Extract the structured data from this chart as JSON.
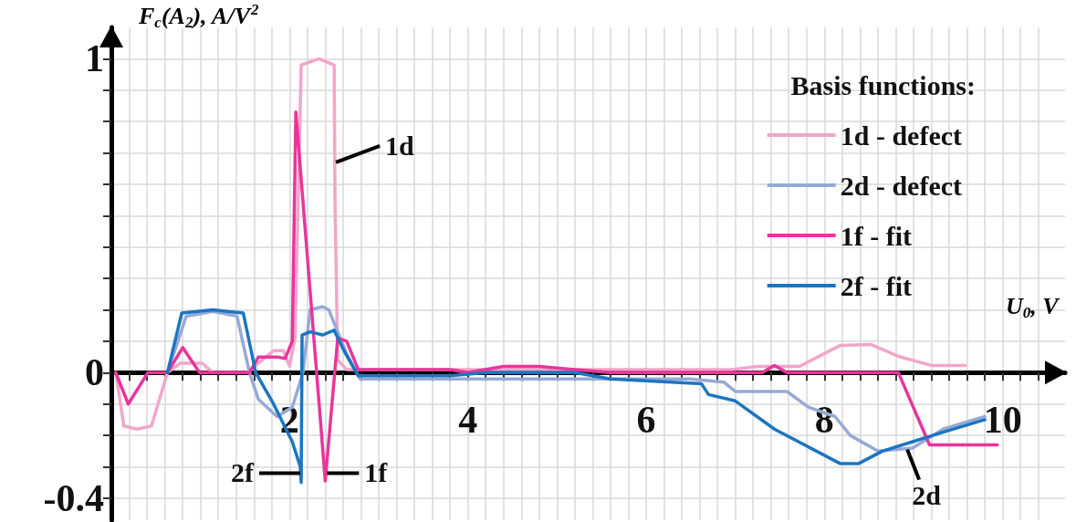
{
  "chart_data": {
    "type": "line",
    "xlabel": "U$_{0}$, V",
    "ylabel": "F$_{c}$(A$_{2}$), A/V$^{2}$",
    "legend_title": "Basis functions:",
    "legend": "top right",
    "grid": true,
    "xlim": [
      0,
      10.7
    ],
    "ylim": [
      -0.47,
      1.1
    ],
    "xticks": [
      {
        "value": 0.2,
        "label": null
      },
      {
        "value": 0.4,
        "label": null
      },
      {
        "value": 0.6,
        "label": null
      },
      {
        "value": 0.8,
        "label": null
      },
      {
        "value": 1,
        "label": null
      },
      {
        "value": 1.2,
        "label": null
      },
      {
        "value": 1.4,
        "label": null
      },
      {
        "value": 1.6,
        "label": null
      },
      {
        "value": 1.8,
        "label": null
      },
      2,
      {
        "value": 2.2,
        "label": null
      },
      {
        "value": 2.4,
        "label": null
      },
      {
        "value": 2.6,
        "label": null
      },
      {
        "value": 2.8,
        "label": null
      },
      {
        "value": 3,
        "label": null
      },
      {
        "value": 3.2,
        "label": null
      },
      {
        "value": 3.4,
        "label": null
      },
      {
        "value": 3.6,
        "label": null
      },
      {
        "value": 3.8,
        "label": null
      },
      4,
      {
        "value": 4.2,
        "label": null
      },
      {
        "value": 4.4,
        "label": null
      },
      {
        "value": 4.6,
        "label": null
      },
      {
        "value": 4.8,
        "label": null
      },
      {
        "value": 5,
        "label": null
      },
      {
        "value": 5.2,
        "label": null
      },
      {
        "value": 5.4,
        "label": null
      },
      {
        "value": 5.6,
        "label": null
      },
      {
        "value": 5.8,
        "label": null
      },
      6,
      {
        "value": 6.2,
        "label": null
      },
      {
        "value": 6.4,
        "label": null
      },
      {
        "value": 6.6,
        "label": null
      },
      {
        "value": 6.8,
        "label": null
      },
      {
        "value": 7,
        "label": null
      },
      {
        "value": 7.2,
        "label": null
      },
      {
        "value": 7.4,
        "label": null
      },
      {
        "value": 7.6,
        "label": null
      },
      {
        "value": 7.8,
        "label": null
      },
      8,
      {
        "value": 8.2,
        "label": null
      },
      {
        "value": 8.4,
        "label": null
      },
      {
        "value": 8.6,
        "label": null
      },
      {
        "value": 8.8,
        "label": null
      },
      {
        "value": 9,
        "label": null
      },
      {
        "value": 9.2,
        "label": null
      },
      {
        "value": 9.4,
        "label": null
      },
      {
        "value": 9.6,
        "label": null
      },
      {
        "value": 9.8,
        "label": null
      },
      10,
      {
        "value": 10.2,
        "label": null
      },
      {
        "value": 10.4,
        "label": null
      }
    ],
    "yticks": [
      -0.4,
      {
        "value": -0.3,
        "label": null
      },
      {
        "value": -0.2,
        "label": null
      },
      {
        "value": -0.1,
        "label": null
      },
      0,
      {
        "value": 0.1,
        "label": null
      },
      {
        "value": 0.2,
        "label": null
      },
      {
        "value": 0.3,
        "label": null
      },
      {
        "value": 0.4,
        "label": null
      },
      {
        "value": 0.5,
        "label": null
      },
      {
        "value": 0.6,
        "label": null
      },
      {
        "value": 0.7,
        "label": null
      },
      {
        "value": 0.8,
        "label": null
      },
      {
        "value": 0.9,
        "label": null
      },
      1
    ],
    "series": [
      {
        "name": "1d - defect",
        "color": "#f2a6c9",
        "x": [
          0.05,
          0.14,
          0.29,
          0.45,
          0.63,
          0.77,
          1.02,
          1.14,
          1.52,
          1.82,
          1.93,
          2.0,
          2.06,
          2.11,
          2.13,
          2.33,
          2.5,
          2.51,
          2.54,
          2.64,
          4.0,
          5.0,
          6.0,
          6.96,
          7.25,
          7.72,
          8.18,
          8.52,
          8.83,
          9.2,
          9.58
        ],
        "values": [
          0,
          -0.17,
          -0.18,
          -0.17,
          0,
          0.03,
          0.03,
          0,
          0,
          0.07,
          0.07,
          0.02,
          0.11,
          0.72,
          0.98,
          1.0,
          0.98,
          0.53,
          0.04,
          0.01,
          0.01,
          0.01,
          0.01,
          0.01,
          0.02,
          0.02,
          0.087,
          0.09,
          0.052,
          0.023,
          0.023
        ]
      },
      {
        "name": "2d - defect",
        "color": "#97a9d6",
        "x": [
          0.63,
          0.84,
          1.14,
          1.41,
          1.55,
          1.65,
          1.86,
          2.03,
          2.15,
          2.23,
          2.37,
          2.44,
          2.64,
          2.79,
          3.5,
          4.5,
          5.5,
          6.5,
          6.87,
          7.0,
          7.58,
          7.82,
          8.12,
          8.29,
          8.6,
          8.99,
          9.33,
          9.8
        ],
        "values": [
          0,
          0.18,
          0.195,
          0.18,
          0,
          -0.085,
          -0.14,
          -0.11,
          0,
          0.2,
          0.21,
          0.2,
          0.06,
          -0.02,
          -0.02,
          -0.02,
          -0.02,
          -0.02,
          -0.03,
          -0.06,
          -0.06,
          -0.11,
          -0.14,
          -0.2,
          -0.25,
          -0.24,
          -0.18,
          -0.14
        ]
      },
      {
        "name": "1f - fit",
        "color": "#e8359b",
        "x": [
          0.05,
          0.19,
          0.41,
          0.63,
          0.8,
          0.99,
          1.55,
          1.65,
          1.86,
          1.95,
          2.03,
          2.07,
          2.4,
          2.54,
          2.64,
          2.77,
          3.8,
          4.0,
          4.4,
          4.8,
          5.2,
          5.6,
          7.3,
          7.44,
          7.58,
          8.83,
          9.18,
          9.94
        ],
        "values": [
          0,
          -0.1,
          0,
          0,
          0.08,
          0,
          0,
          0.05,
          0.05,
          0.045,
          0.1,
          0.83,
          -0.345,
          0.11,
          0.1,
          0.01,
          0.01,
          0.0,
          0.02,
          0.02,
          0.01,
          0.0,
          0.0,
          0.023,
          0.0,
          0.0,
          -0.23,
          -0.23
        ]
      },
      {
        "name": "2f - fit",
        "color": "#1c75c1",
        "x": [
          0.63,
          0.79,
          1.14,
          1.48,
          1.62,
          1.82,
          2.03,
          2.12,
          2.13,
          2.14,
          2.23,
          2.37,
          2.5,
          2.61,
          2.77,
          3.8,
          4.2,
          5.2,
          5.6,
          6.62,
          6.7,
          7.0,
          7.44,
          8.18,
          8.38,
          8.65,
          8.99,
          9.33,
          9.8
        ],
        "values": [
          0,
          0.19,
          0.2,
          0.19,
          0,
          -0.1,
          -0.22,
          -0.3,
          -0.35,
          0.12,
          0.13,
          0.12,
          0.135,
          0.07,
          -0.01,
          -0.01,
          0,
          0,
          -0.02,
          -0.035,
          -0.07,
          -0.09,
          -0.18,
          -0.29,
          -0.29,
          -0.25,
          -0.22,
          -0.19,
          -0.15
        ]
      }
    ],
    "annotations": [
      {
        "text": "1d",
        "x": 2.52,
        "y": 0.67
      },
      {
        "text": "2f",
        "x": 2.12,
        "y": -0.32
      },
      {
        "text": "1f",
        "x": 2.42,
        "y": -0.32
      },
      {
        "text": "2d",
        "x": 8.93,
        "y": -0.245
      }
    ]
  }
}
